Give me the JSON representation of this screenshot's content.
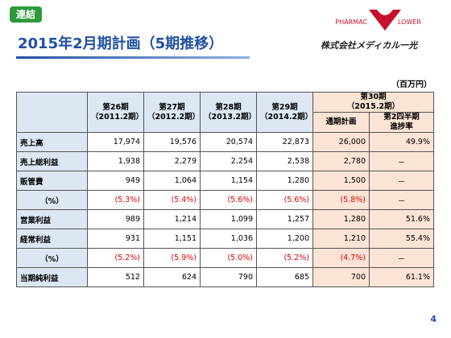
{
  "badge": "連結",
  "title": "2015年2月期計画（5期推移）",
  "logo": {
    "top_left": "PHARMAC",
    "top_right": "LOWER",
    "company": "株式会社メディカル一光"
  },
  "unit": "（百万円）",
  "table": {
    "columns": [
      {
        "period": "第26期",
        "fy": "（2011.2期）"
      },
      {
        "period": "第27期",
        "fy": "（2012.2期）"
      },
      {
        "period": "第28期",
        "fy": "（2013.2期）"
      },
      {
        "period": "第29期",
        "fy": "（2014.2期）"
      }
    ],
    "plan": {
      "period": "第30期",
      "fy": "（2015.2期）",
      "sub": [
        "通期計画",
        [
          "第2四半期",
          "進捗率"
        ]
      ]
    },
    "rows": [
      {
        "label": "売上高",
        "values": [
          "17,974",
          "19,576",
          "20,574",
          "22,873",
          "26,000",
          "49.9%"
        ]
      },
      {
        "label": "売上総利益",
        "values": [
          "1,938",
          "2,279",
          "2,254",
          "2,538",
          "2,780",
          "－"
        ]
      },
      {
        "label": "販管費",
        "values": [
          "949",
          "1,064",
          "1,154",
          "1,280",
          "1,500",
          "－"
        ]
      },
      {
        "label": "（%）",
        "values": [
          "(5.3%)",
          "(5.4%)",
          "(5.6%)",
          "(5.6%)",
          "(5.8%)",
          "－"
        ]
      },
      {
        "label": "営業利益",
        "values": [
          "989",
          "1,214",
          "1,099",
          "1,257",
          "1,280",
          "51.6%"
        ]
      },
      {
        "label": "経常利益",
        "values": [
          "931",
          "1,151",
          "1,036",
          "1,200",
          "1,210",
          "55.4%"
        ]
      },
      {
        "label": "（%）",
        "values": [
          "(5.2%)",
          "(5.9%)",
          "(5.0%)",
          "(5.2%)",
          "(4.7%)",
          "－"
        ]
      },
      {
        "label": "当期純利益",
        "values": [
          "512",
          "624",
          "790",
          "685",
          "700",
          "61.1%"
        ]
      }
    ]
  },
  "page_number": "4"
}
